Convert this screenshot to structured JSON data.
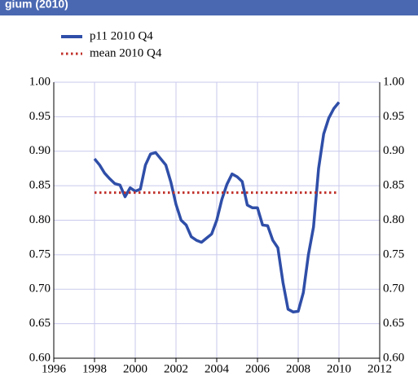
{
  "chart_data": {
    "type": "line",
    "title": "gium (2010)",
    "series": [
      {
        "name": "p11 2010 Q4",
        "color": "#2f4ea8",
        "style": "solid",
        "x": [
          1998,
          1998.25,
          1998.5,
          1998.75,
          1999,
          1999.25,
          1999.5,
          1999.75,
          2000,
          2000.25,
          2000.5,
          2000.75,
          2001,
          2001.25,
          2001.5,
          2001.75,
          2002,
          2002.25,
          2002.5,
          2002.75,
          2003,
          2003.25,
          2003.5,
          2003.75,
          2004,
          2004.25,
          2004.5,
          2004.75,
          2005,
          2005.25,
          2005.5,
          2005.75,
          2006,
          2006.25,
          2006.5,
          2006.75,
          2007,
          2007.25,
          2007.5,
          2007.75,
          2008,
          2008.25,
          2008.5,
          2008.75,
          2009,
          2009.25,
          2009.5,
          2009.75,
          2010
        ],
        "values": [
          0.889,
          0.88,
          0.868,
          0.86,
          0.853,
          0.851,
          0.834,
          0.847,
          0.842,
          0.845,
          0.88,
          0.896,
          0.898,
          0.889,
          0.88,
          0.855,
          0.823,
          0.8,
          0.793,
          0.776,
          0.771,
          0.768,
          0.774,
          0.78,
          0.8,
          0.83,
          0.852,
          0.867,
          0.863,
          0.856,
          0.822,
          0.818,
          0.818,
          0.793,
          0.792,
          0.771,
          0.76,
          0.71,
          0.671,
          0.667,
          0.668,
          0.695,
          0.75,
          0.79,
          0.875,
          0.925,
          0.948,
          0.962,
          0.971
        ]
      },
      {
        "name": "mean 2010 Q4",
        "color": "#c0302a",
        "style": "dotted",
        "x": [
          1998,
          2010
        ],
        "values": [
          0.84,
          0.84
        ]
      }
    ],
    "xlim": [
      1996,
      2012
    ],
    "xticks": [
      1996,
      1998,
      2000,
      2002,
      2004,
      2006,
      2008,
      2010,
      2012
    ],
    "ylim": [
      0.6,
      1.0
    ],
    "yticks": [
      {
        "value": 0.6,
        "label": "0.60"
      },
      {
        "value": 0.65,
        "label": "0.65"
      },
      {
        "value": 0.7,
        "label": "0.70"
      },
      {
        "value": 0.75,
        "label": "0.75"
      },
      {
        "value": 0.8,
        "label": "0.80"
      },
      {
        "value": 0.85,
        "label": "0.85"
      },
      {
        "value": 0.9,
        "label": "0.90"
      },
      {
        "value": 0.95,
        "label": "0.95"
      },
      {
        "value": 1.0,
        "label": "1.00"
      }
    ],
    "grid": true,
    "legend": "top-left"
  }
}
